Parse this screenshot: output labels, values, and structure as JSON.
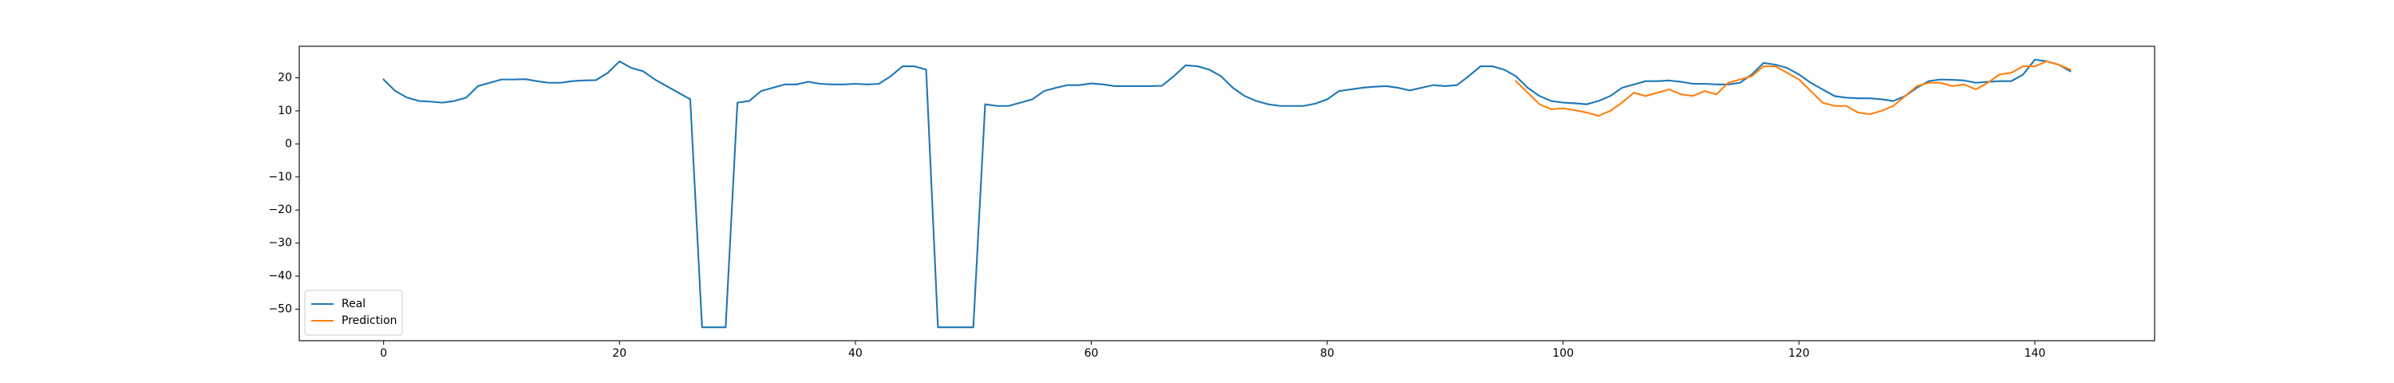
{
  "chart_data": {
    "type": "line",
    "x": [
      0,
      1,
      2,
      3,
      4,
      5,
      6,
      7,
      8,
      9,
      10,
      11,
      12,
      13,
      14,
      15,
      16,
      17,
      18,
      19,
      20,
      21,
      22,
      23,
      24,
      25,
      26,
      27,
      28,
      29,
      30,
      31,
      32,
      33,
      34,
      35,
      36,
      37,
      38,
      39,
      40,
      41,
      42,
      43,
      44,
      45,
      46,
      47,
      48,
      49,
      50,
      51,
      52,
      53,
      54,
      55,
      56,
      57,
      58,
      59,
      60,
      61,
      62,
      63,
      64,
      65,
      66,
      67,
      68,
      69,
      70,
      71,
      72,
      73,
      74,
      75,
      76,
      77,
      78,
      79,
      80,
      81,
      82,
      83,
      84,
      85,
      86,
      87,
      88,
      89,
      90,
      91,
      92,
      93,
      94,
      95,
      96,
      97,
      98,
      99,
      100,
      101,
      102,
      103,
      104,
      105,
      106,
      107,
      108,
      109,
      110,
      111,
      112,
      113,
      114,
      115,
      116,
      117,
      118,
      119,
      120,
      121,
      122,
      123,
      124,
      125,
      126,
      127,
      128,
      129,
      130,
      131,
      132,
      133,
      134,
      135,
      136,
      137,
      138,
      139,
      140,
      141,
      142,
      143
    ],
    "series": [
      {
        "name": "Real",
        "color": "#1f77b4",
        "values": [
          19.5,
          16,
          14,
          13,
          12.8,
          12.5,
          13,
          14,
          17.5,
          18.5,
          19.5,
          19.5,
          19.6,
          19,
          18.5,
          18.5,
          19,
          19.2,
          19.3,
          21.5,
          25,
          23,
          22,
          19.5,
          17.5,
          15.5,
          13.5,
          -55.5,
          -55.5,
          -55.5,
          12.5,
          13,
          16,
          17,
          18,
          18,
          18.8,
          18.2,
          18,
          18,
          18.2,
          18,
          18.2,
          20.5,
          23.5,
          23.5,
          22.5,
          -55.5,
          -55.5,
          -55.5,
          -55.5,
          12,
          11.5,
          11.5,
          12.5,
          13.5,
          16,
          17,
          17.8,
          17.8,
          18.3,
          18,
          17.5,
          17.5,
          17.5,
          17.5,
          17.6,
          20.5,
          23.8,
          23.5,
          22.5,
          20.5,
          17,
          14.5,
          13,
          12,
          11.5,
          11.5,
          11.5,
          12.2,
          13.5,
          16,
          16.5,
          17,
          17.3,
          17.5,
          17,
          16.2,
          17,
          17.8,
          17.5,
          17.8,
          20.5,
          23.5,
          23.5,
          22.5,
          20.5,
          17,
          14.5,
          13,
          12.5,
          12.3,
          12,
          13,
          14.5,
          17,
          18,
          19,
          19,
          19.2,
          18.8,
          18.2,
          18.2,
          18,
          18,
          18.5,
          21,
          24.5,
          24,
          23,
          21,
          18.5,
          16.5,
          14.5,
          14,
          13.8,
          13.8,
          13.5,
          13,
          14.5,
          17,
          19,
          19.5,
          19.4,
          19.2,
          18.5,
          18.8,
          19,
          19,
          21,
          25.5,
          25,
          24,
          22
        ]
      },
      {
        "name": "Prediction",
        "color": "#ff7f0e",
        "values": [
          null,
          null,
          null,
          null,
          null,
          null,
          null,
          null,
          null,
          null,
          null,
          null,
          null,
          null,
          null,
          null,
          null,
          null,
          null,
          null,
          null,
          null,
          null,
          null,
          null,
          null,
          null,
          null,
          null,
          null,
          null,
          null,
          null,
          null,
          null,
          null,
          null,
          null,
          null,
          null,
          null,
          null,
          null,
          null,
          null,
          null,
          null,
          null,
          null,
          null,
          null,
          null,
          null,
          null,
          null,
          null,
          null,
          null,
          null,
          null,
          null,
          null,
          null,
          null,
          null,
          null,
          null,
          null,
          null,
          null,
          null,
          null,
          null,
          null,
          null,
          null,
          null,
          null,
          null,
          null,
          null,
          null,
          null,
          null,
          null,
          null,
          null,
          null,
          null,
          null,
          null,
          null,
          null,
          null,
          null,
          null,
          19,
          15.5,
          12,
          10.5,
          10.8,
          10.2,
          9.5,
          8.5,
          10,
          12.5,
          15.5,
          14.5,
          15.5,
          16.5,
          15,
          14.5,
          16,
          15,
          18.5,
          19.5,
          20.5,
          23.5,
          23.5,
          21.5,
          19.5,
          16,
          12.5,
          11.5,
          11.5,
          9.5,
          9,
          10,
          11.5,
          14.5,
          17.5,
          18.5,
          18.5,
          17.5,
          18,
          16.5,
          18.5,
          21,
          21.5,
          23.5,
          23.5,
          25,
          24,
          22.5
        ]
      }
    ],
    "xlim": [
      -7.15,
      150.15
    ],
    "ylim": [
      -59.55,
      29.55
    ],
    "xticks": [
      0,
      20,
      40,
      60,
      80,
      100,
      120,
      140
    ],
    "yticks": [
      {
        "value": -50,
        "label": "−50"
      },
      {
        "value": -40,
        "label": "−40"
      },
      {
        "value": -30,
        "label": "−30"
      },
      {
        "value": -20,
        "label": "−20"
      },
      {
        "value": -10,
        "label": "−10"
      },
      0,
      10,
      20
    ],
    "legend": "lower left"
  }
}
